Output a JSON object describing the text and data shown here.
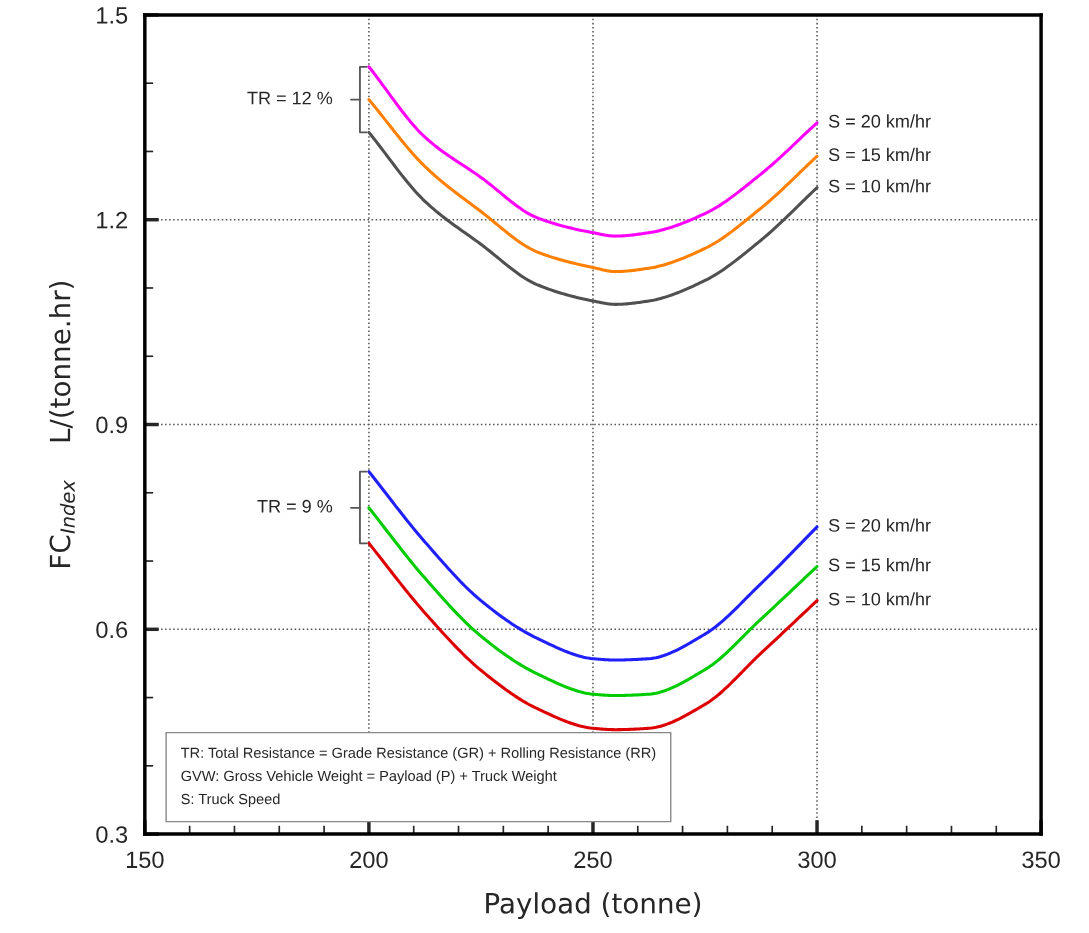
{
  "chart_data": {
    "type": "line",
    "xlabel": "Payload (tonne)",
    "ylabel": "FC$_{Index}$    L/(tonne.hr)",
    "x": [
      200,
      212.5,
      225,
      237.5,
      250,
      255,
      262.5,
      275,
      287.5,
      300
    ],
    "series": [
      {
        "name": "S = 20 km/hr",
        "color": "#ff00ff",
        "values": [
          1.424,
          1.321,
          1.262,
          1.203,
          1.181,
          1.176,
          1.181,
          1.209,
          1.267,
          1.342
        ]
      },
      {
        "name": "S = 15 km/hr",
        "color": "#ff8000",
        "values": [
          1.376,
          1.278,
          1.212,
          1.153,
          1.13,
          1.124,
          1.129,
          1.158,
          1.217,
          1.293
        ]
      },
      {
        "name": "S = 10 km/hr",
        "color": "#505050",
        "values": [
          1.328,
          1.227,
          1.164,
          1.105,
          1.081,
          1.076,
          1.081,
          1.111,
          1.17,
          1.247
        ]
      },
      {
        "name": "S = 20 km/hr",
        "color": "#2020ff",
        "values": [
          0.831,
          0.728,
          0.642,
          0.587,
          0.557,
          0.555,
          0.557,
          0.593,
          0.667,
          0.75
        ]
      },
      {
        "name": "S = 15 km/hr",
        "color": "#00cc00",
        "values": [
          0.778,
          0.675,
          0.59,
          0.535,
          0.505,
          0.503,
          0.505,
          0.541,
          0.615,
          0.692
        ]
      },
      {
        "name": "S = 10 km/hr",
        "color": "#dd0000",
        "values": [
          0.726,
          0.624,
          0.54,
          0.484,
          0.455,
          0.453,
          0.455,
          0.49,
          0.565,
          0.642
        ]
      }
    ],
    "xlim": [
      150,
      350
    ],
    "xticks": [
      150,
      {
        "value": 160,
        "label": null
      },
      {
        "value": 170,
        "label": null
      },
      {
        "value": 180,
        "label": null
      },
      {
        "value": 190,
        "label": null
      },
      200,
      {
        "value": 210,
        "label": null
      },
      {
        "value": 220,
        "label": null
      },
      {
        "value": 230,
        "label": null
      },
      {
        "value": 240,
        "label": null
      },
      250,
      {
        "value": 260,
        "label": null
      },
      {
        "value": 270,
        "label": null
      },
      {
        "value": 280,
        "label": null
      },
      {
        "value": 290,
        "label": null
      },
      300,
      {
        "value": 310,
        "label": null
      },
      {
        "value": 320,
        "label": null
      },
      {
        "value": 330,
        "label": null
      },
      {
        "value": 340,
        "label": null
      },
      350
    ],
    "ylim": [
      0.3,
      1.5
    ],
    "yticks": [
      0.3,
      {
        "value": 0.4,
        "label": null
      },
      {
        "value": 0.5,
        "label": null
      },
      0.6,
      {
        "value": 0.7,
        "label": null
      },
      {
        "value": 0.8,
        "label": null
      },
      0.9,
      {
        "value": 1.0,
        "label": null
      },
      {
        "value": 1.1,
        "label": null
      },
      1.2,
      {
        "value": 1.3,
        "label": null
      },
      {
        "value": 1.4,
        "label": null
      },
      1.5
    ],
    "grid": true,
    "legend": false,
    "line_style": "solid",
    "marker": "none",
    "annotations": [
      {
        "text": "TR = 12 %",
        "x": 200,
        "y": 1.376
      },
      {
        "text": "TR = 9 %",
        "x": 200,
        "y": 0.778
      },
      "TR: Total Resistance = Grade Resistance (GR) + Rolling Resistance (RR)",
      "GVW: Gross Vehicle Weight = Payload (P) + Truck Weight",
      "S: Truck Speed"
    ]
  }
}
